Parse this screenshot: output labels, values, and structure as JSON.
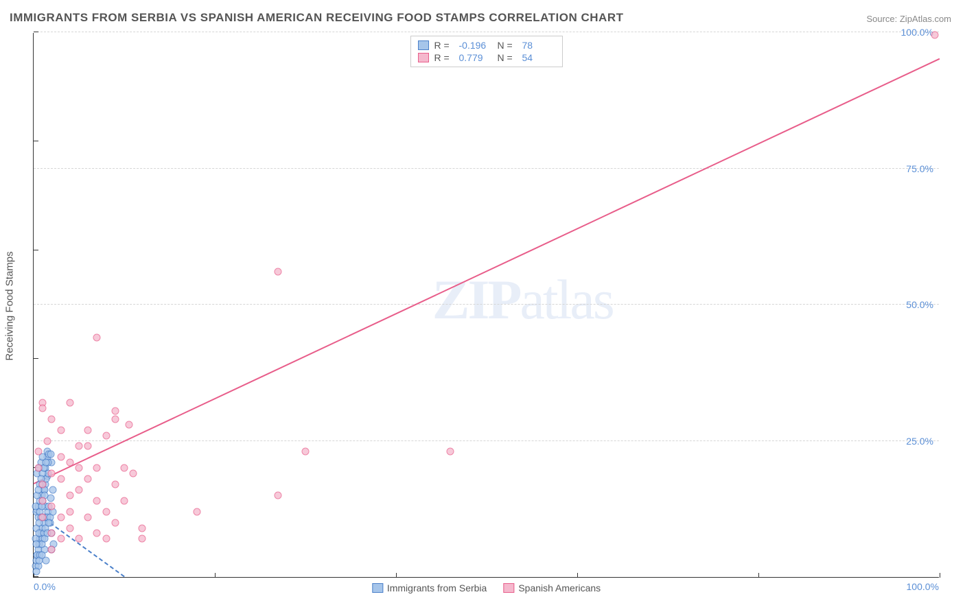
{
  "title": "IMMIGRANTS FROM SERBIA VS SPANISH AMERICAN RECEIVING FOOD STAMPS CORRELATION CHART",
  "source": "Source: ZipAtlas.com",
  "watermark": {
    "bold": "ZIP",
    "rest": "atlas"
  },
  "chart": {
    "type": "scatter",
    "xlim": [
      0,
      100
    ],
    "ylim": [
      0,
      100
    ],
    "x_ticks": [
      0,
      20,
      40,
      60,
      80,
      100
    ],
    "y_grid": [
      25,
      50,
      75,
      100
    ],
    "x_label_min": "0.0%",
    "x_label_max": "100.0%",
    "y_labels": [
      "25.0%",
      "50.0%",
      "75.0%",
      "100.0%"
    ],
    "ylabel": "Receiving Food Stamps",
    "background_color": "#ffffff",
    "grid_color": "#d5d5d5",
    "axis_color": "#333333",
    "tick_label_color": "#5b8fd6",
    "marker_size": 11,
    "marker_stroke_width": 1.5,
    "marker_fill_opacity": 0.25
  },
  "series": [
    {
      "name": "Immigrants from Serbia",
      "color_stroke": "#4a7fc9",
      "color_fill": "#a6c5ea",
      "R": "-0.196",
      "N": "78",
      "trend": {
        "x1": 0,
        "y1": 12,
        "x2": 10,
        "y2": 0,
        "dashed": true
      },
      "points": [
        [
          0.2,
          2
        ],
        [
          0.3,
          3
        ],
        [
          0.4,
          4
        ],
        [
          0.5,
          5
        ],
        [
          0.6,
          6
        ],
        [
          0.7,
          7
        ],
        [
          0.8,
          8
        ],
        [
          0.9,
          9
        ],
        [
          1.1,
          10
        ],
        [
          1.2,
          11
        ],
        [
          0.3,
          12
        ],
        [
          0.5,
          13
        ],
        [
          0.7,
          14
        ],
        [
          0.9,
          15
        ],
        [
          1.1,
          16
        ],
        [
          1.3,
          17
        ],
        [
          1.5,
          18.5
        ],
        [
          0.4,
          19
        ],
        [
          0.6,
          20
        ],
        [
          1.5,
          22
        ],
        [
          0.8,
          21
        ],
        [
          1.0,
          22
        ],
        [
          1.5,
          23
        ],
        [
          1.0,
          7
        ],
        [
          1.2,
          5
        ],
        [
          1.4,
          3
        ],
        [
          1.6,
          12
        ],
        [
          1.8,
          10
        ],
        [
          2.0,
          8
        ],
        [
          2.2,
          6
        ],
        [
          0.2,
          7
        ],
        [
          0.3,
          9
        ],
        [
          0.5,
          11
        ],
        [
          0.7,
          12
        ],
        [
          0.9,
          17
        ],
        [
          1.3,
          13
        ],
        [
          0.4,
          4
        ],
        [
          0.6,
          8
        ],
        [
          0.8,
          11
        ],
        [
          1.0,
          14
        ],
        [
          1.2,
          16
        ],
        [
          1.4,
          18
        ],
        [
          1.6,
          19
        ],
        [
          1.7,
          22.5
        ],
        [
          2.0,
          21
        ],
        [
          0.5,
          2
        ],
        [
          0.7,
          4
        ],
        [
          0.9,
          6
        ],
        [
          1.1,
          8
        ],
        [
          1.3,
          9
        ],
        [
          1.5,
          11
        ],
        [
          1.7,
          13
        ],
        [
          1.9,
          14.5
        ],
        [
          2.1,
          16
        ],
        [
          0.3,
          1
        ],
        [
          0.6,
          3
        ],
        [
          0.9,
          4
        ],
        [
          1.2,
          7
        ],
        [
          1.5,
          8
        ],
        [
          1.8,
          11
        ],
        [
          2.1,
          12
        ],
        [
          0.4,
          15
        ],
        [
          0.7,
          17
        ],
        [
          1.0,
          19
        ],
        [
          1.3,
          20
        ],
        [
          1.6,
          21
        ],
        [
          1.9,
          22.5
        ],
        [
          0.2,
          13
        ],
        [
          0.5,
          16
        ],
        [
          0.8,
          18
        ],
        [
          1.1,
          20
        ],
        [
          1.4,
          21
        ],
        [
          1.7,
          10
        ],
        [
          2.0,
          5
        ],
        [
          0.3,
          6
        ],
        [
          0.6,
          10
        ],
        [
          0.9,
          13
        ],
        [
          1.2,
          15
        ]
      ]
    },
    {
      "name": "Spanish Americans",
      "color_stroke": "#e85d8a",
      "color_fill": "#f5b8cd",
      "R": "0.779",
      "N": "54",
      "trend": {
        "x1": 0,
        "y1": 17,
        "x2": 100,
        "y2": 95,
        "dashed": false
      },
      "points": [
        [
          99.5,
          99.5
        ],
        [
          27,
          56
        ],
        [
          46,
          23
        ],
        [
          30,
          23
        ],
        [
          27,
          15
        ],
        [
          18,
          12
        ],
        [
          7,
          44
        ],
        [
          1,
          32
        ],
        [
          1,
          31
        ],
        [
          4,
          32
        ],
        [
          9,
          30.5
        ],
        [
          9,
          29
        ],
        [
          6,
          24
        ],
        [
          8,
          26
        ],
        [
          10.5,
          28
        ],
        [
          3,
          27
        ],
        [
          3,
          22
        ],
        [
          7,
          20
        ],
        [
          6,
          18
        ],
        [
          9,
          17
        ],
        [
          11,
          19
        ],
        [
          4,
          15
        ],
        [
          7,
          14
        ],
        [
          2,
          19
        ],
        [
          1,
          17
        ],
        [
          1,
          14
        ],
        [
          2,
          13
        ],
        [
          3,
          11
        ],
        [
          4,
          9
        ],
        [
          5,
          7
        ],
        [
          7,
          8
        ],
        [
          9,
          10
        ],
        [
          12,
          9
        ],
        [
          8,
          12
        ],
        [
          10,
          14
        ],
        [
          12,
          7
        ],
        [
          5,
          16
        ],
        [
          2,
          8
        ],
        [
          0.5,
          23
        ],
        [
          0.5,
          20
        ],
        [
          1.5,
          25
        ],
        [
          3,
          18
        ],
        [
          4,
          21
        ],
        [
          5,
          24
        ],
        [
          6,
          27
        ],
        [
          2,
          29
        ],
        [
          1,
          11
        ],
        [
          2,
          5
        ],
        [
          3,
          7
        ],
        [
          4,
          12
        ],
        [
          8,
          7
        ],
        [
          10,
          20
        ],
        [
          5,
          20
        ],
        [
          6,
          11
        ]
      ]
    }
  ],
  "legend_top_labels": {
    "R": "R =",
    "N": "N ="
  },
  "legend_bottom": [
    "Immigrants from Serbia",
    "Spanish Americans"
  ]
}
